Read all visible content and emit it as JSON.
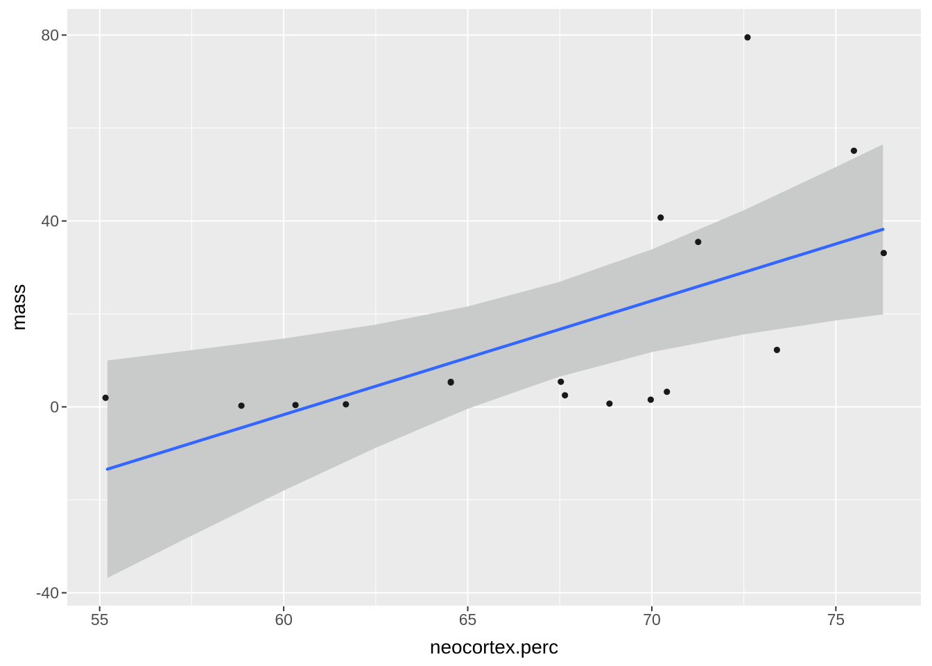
{
  "chart_data": {
    "type": "scatter",
    "title": "",
    "xlabel": "neocortex.perc",
    "ylabel": "mass",
    "x_ticks": [
      55,
      60,
      65,
      70,
      75
    ],
    "x_minor_ticks": [
      57.5,
      62.5,
      67.5,
      72.5
    ],
    "y_ticks": [
      -40,
      0,
      40,
      80
    ],
    "y_minor_ticks": [
      -20,
      20,
      60
    ],
    "xlim": [
      54.12,
      77.31
    ],
    "ylim": [
      -42.76,
      85.6
    ],
    "grid": "white major+minor gridlines on gray panel",
    "legend_position": "none",
    "points": [
      {
        "x": 55.16,
        "y": 1.95
      },
      {
        "x": 58.85,
        "y": 0.25
      },
      {
        "x": 60.32,
        "y": 0.4
      },
      {
        "x": 61.69,
        "y": 0.55
      },
      {
        "x": 64.54,
        "y": 5.25
      },
      {
        "x": 64.54,
        "y": 5.37
      },
      {
        "x": 67.53,
        "y": 5.4
      },
      {
        "x": 67.64,
        "y": 2.5
      },
      {
        "x": 68.85,
        "y": 0.7
      },
      {
        "x": 69.97,
        "y": 1.55
      },
      {
        "x": 70.24,
        "y": 40.74
      },
      {
        "x": 70.41,
        "y": 3.25
      },
      {
        "x": 71.26,
        "y": 35.5
      },
      {
        "x": 72.6,
        "y": 79.5
      },
      {
        "x": 73.4,
        "y": 12.25
      },
      {
        "x": 75.49,
        "y": 55.1
      },
      {
        "x": 76.3,
        "y": 33.1
      }
    ],
    "smooth": {
      "method": "linear",
      "line": {
        "x1": 55.21,
        "y1": -13.4,
        "x2": 76.28,
        "y2": 38.2
      },
      "ribbon": {
        "x": [
          55.21,
          57.5,
          60.0,
          62.5,
          65.0,
          67.45,
          70.0,
          72.5,
          75.0,
          76.28
        ],
        "upper": [
          10.0,
          12.2,
          14.7,
          17.7,
          21.6,
          26.8,
          33.9,
          42.3,
          51.6,
          56.5
        ],
        "lower": [
          -36.8,
          -27.7,
          -18.0,
          -8.8,
          -0.4,
          6.4,
          11.8,
          15.6,
          18.6,
          19.9
        ]
      }
    },
    "colors": {
      "panel_background": "#EBEBEB",
      "gridline": "#FFFFFF",
      "point": "#191919",
      "smooth_line": "#3366FF",
      "ribbon": "#C9CACA",
      "tick_label": "#4D4D4D",
      "tick_mark": "#333333",
      "axis_title": "#000000",
      "outer_background": "#FFFFFF"
    }
  }
}
